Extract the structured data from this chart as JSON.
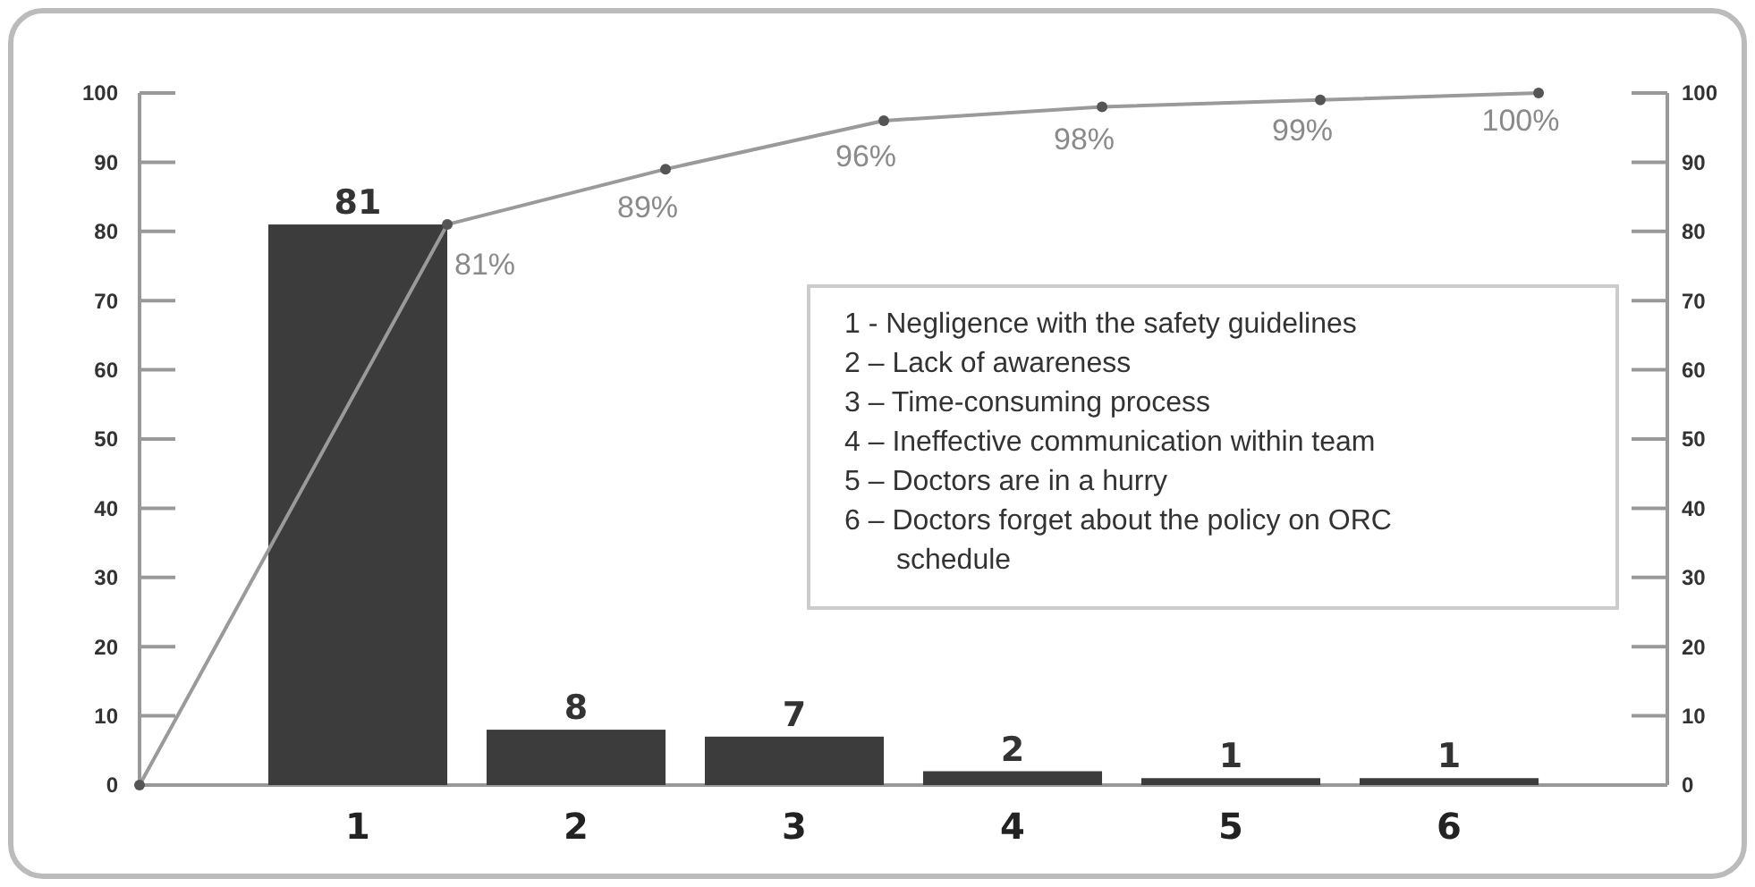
{
  "chart_data": {
    "type": "bar",
    "x": [
      1,
      2,
      3,
      4,
      5,
      6
    ],
    "xlim": [
      0,
      7
    ],
    "xticks": [
      1,
      2,
      3,
      4,
      5,
      6
    ],
    "ylim": [
      0,
      100
    ],
    "yticks": [
      0,
      10,
      20,
      30,
      40,
      50,
      60,
      70,
      80,
      90,
      100
    ],
    "y2lim": [
      0,
      100
    ],
    "y2ticks": [
      0,
      10,
      20,
      30,
      40,
      50,
      60,
      70,
      80,
      90,
      100
    ],
    "data_labels": true,
    "grid": false,
    "series": [
      {
        "color": "#3c3c3c",
        "values": [
          81,
          8,
          7,
          2,
          1,
          1
        ]
      },
      {
        "type": "line",
        "color": "#9a9a9a",
        "marker": "circle",
        "line_style": "solid",
        "x": [
          0,
          1.41,
          2.41,
          3.41,
          4.41,
          5.41,
          6.41
        ],
        "values": [
          0,
          81,
          89,
          96,
          98,
          99,
          100
        ],
        "value_labels": [
          null,
          "81%",
          "89%",
          "96%",
          "98%",
          "99%",
          "100%"
        ]
      }
    ],
    "annotations": [
      "1 - Negligence with the safety guidelines",
      "2 – Lack of awareness",
      "3 – Time-consuming process",
      "4 – Ineffective communication within team",
      "5 – Doctors are in a hurry",
      "6 – Doctors forget about the policy on ORC schedule"
    ]
  }
}
